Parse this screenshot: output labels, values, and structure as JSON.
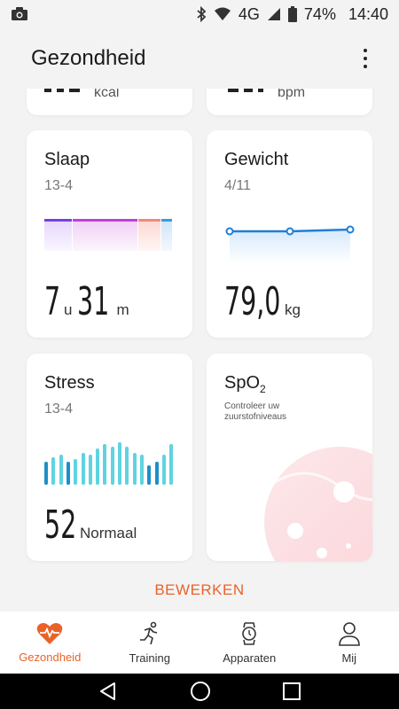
{
  "status_bar": {
    "network": "4G",
    "battery": "74%",
    "time": "14:40"
  },
  "header": {
    "title": "Gezondheid"
  },
  "cards": {
    "calories": {
      "value": "",
      "unit": "kcal"
    },
    "heart_rate": {
      "value": "",
      "unit": "bpm"
    },
    "sleep": {
      "title": "Slaap",
      "date": "13-4",
      "hours": "7",
      "hours_unit": "u",
      "minutes": "31",
      "minutes_unit": "m"
    },
    "weight": {
      "title": "Gewicht",
      "date": "4/11",
      "value": "79,0",
      "unit": "kg",
      "points": [
        78.9,
        78.9,
        79.0
      ]
    },
    "stress": {
      "title": "Stress",
      "date": "13-4",
      "value": "52",
      "status": "Normaal",
      "bars": [
        22,
        26,
        28,
        22,
        24,
        30,
        28,
        34,
        38,
        36,
        40,
        36,
        30,
        28,
        18,
        22,
        28,
        38
      ]
    },
    "spo2": {
      "title_main": "SpO",
      "title_sub": "2",
      "description": "Controleer uw zuurstofniveaus"
    }
  },
  "edit_label": "BEWERKEN",
  "bottom_nav": [
    {
      "label": "Gezondheid",
      "icon": "heart-pulse-icon",
      "active": true
    },
    {
      "label": "Training",
      "icon": "running-icon",
      "active": false
    },
    {
      "label": "Apparaten",
      "icon": "watch-icon",
      "active": false
    },
    {
      "label": "Mij",
      "icon": "person-icon",
      "active": false
    }
  ],
  "colors": {
    "accent": "#e8632a",
    "weight_line": "#1e7fd6",
    "stress_light": "#5fd3e0",
    "stress_dark": "#1e8fc8"
  }
}
